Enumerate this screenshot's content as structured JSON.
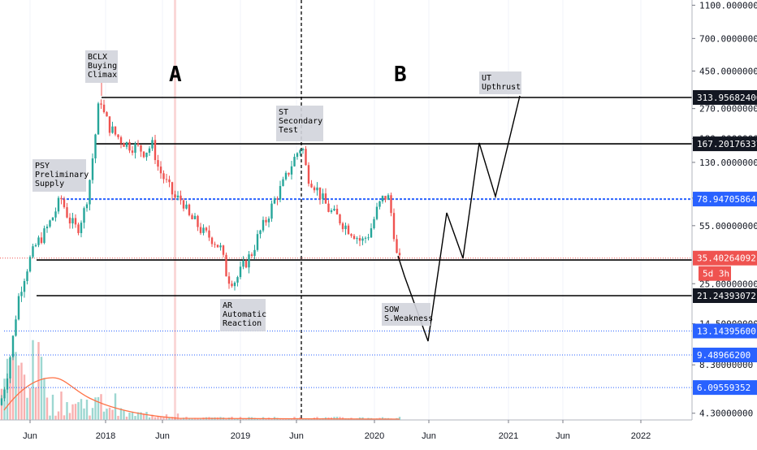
{
  "chart_data": {
    "type": "candlestick",
    "y_scale": "log",
    "y_ticks": [
      {
        "value": 1100,
        "label": "1100.00000000"
      },
      {
        "value": 700,
        "label": "700.00000000"
      },
      {
        "value": 450,
        "label": "450.00000000"
      },
      {
        "value": 270,
        "label": "270.00000000"
      },
      {
        "value": 180,
        "label": "180.00000000"
      },
      {
        "value": 130,
        "label": "130.00000000"
      },
      {
        "value": 80,
        "label": "80.00000000"
      },
      {
        "value": 55,
        "label": "55.00000000"
      },
      {
        "value": 25,
        "label": "25.00000000"
      },
      {
        "value": 14.5,
        "label": "14.50000000"
      },
      {
        "value": 8.3,
        "label": "8.30000000"
      },
      {
        "value": 4.3,
        "label": "4.30000000"
      }
    ],
    "x_ticks": [
      "Jun",
      "2018",
      "Jun",
      "2019",
      "Jun",
      "2020",
      "Jun",
      "2021",
      "Jun",
      "2022"
    ],
    "horizontal_levels": [
      {
        "value": 313.95682406,
        "label": "313.95682406",
        "style": "solid-black"
      },
      {
        "value": 167.20176337,
        "label": "167.20176337",
        "style": "solid-black"
      },
      {
        "value": 78.94705864,
        "label": "78.94705864",
        "style": "dashed-blue"
      },
      {
        "value": 35.40264092,
        "label": "35.40264092",
        "style": "current-price"
      },
      {
        "value": 21.24393072,
        "label": "21.24393072",
        "style": "solid-black"
      },
      {
        "value": 13.143956,
        "label": "13.14395600",
        "style": "dotted-blue"
      },
      {
        "value": 9.489662,
        "label": "9.48966200",
        "style": "dotted-blue"
      },
      {
        "value": 6.09559352,
        "label": "6.09559352",
        "style": "dotted-blue"
      }
    ],
    "current_price": {
      "label": "35.40264092",
      "countdown": "5d 3h"
    },
    "annotations": [
      {
        "lines": [
          "BCLX",
          "Buying",
          "Climax"
        ]
      },
      {
        "lines": [
          "PSY",
          "Preliminary",
          "Supply"
        ]
      },
      {
        "lines": [
          "ST",
          "Secondary",
          "Test"
        ]
      },
      {
        "lines": [
          "AR",
          "Automatic",
          "Reaction"
        ]
      },
      {
        "lines": [
          "SOW",
          "S.Weakness"
        ]
      },
      {
        "lines": [
          "UT",
          "Upthrust"
        ]
      }
    ],
    "phase_labels": [
      "A",
      "B"
    ],
    "colors": {
      "up": "#26a69a",
      "down": "#ef5350",
      "level": "#000000",
      "blue": "#2962ff",
      "volume_ma": "#ff7043",
      "projection": "#000000"
    }
  }
}
